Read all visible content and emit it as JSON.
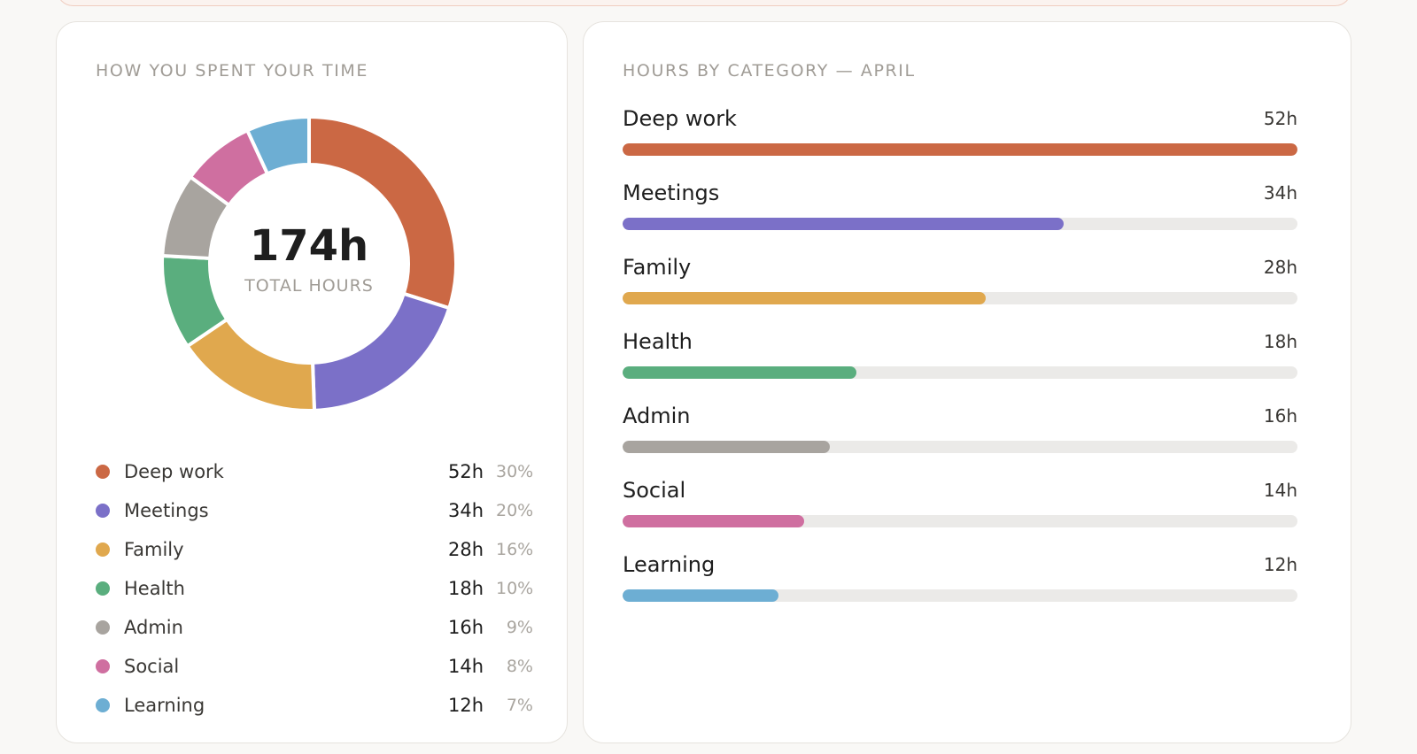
{
  "left_card": {
    "title": "HOW YOU SPENT YOUR TIME",
    "total_value": "174h",
    "total_label": "TOTAL HOURS"
  },
  "right_card": {
    "title": "HOURS BY CATEGORY — APRIL"
  },
  "chart_data": [
    {
      "type": "pie",
      "title": "HOW YOU SPENT YOUR TIME",
      "center_text": "174h",
      "center_subtext": "TOTAL HOURS",
      "total": 174,
      "categories": [
        "Deep work",
        "Meetings",
        "Family",
        "Health",
        "Admin",
        "Social",
        "Learning"
      ],
      "values": [
        52,
        34,
        28,
        18,
        16,
        14,
        12
      ],
      "hours_labels": [
        "52h",
        "34h",
        "28h",
        "18h",
        "16h",
        "14h",
        "12h"
      ],
      "percent_labels": [
        "30%",
        "20%",
        "16%",
        "10%",
        "9%",
        "8%",
        "7%"
      ],
      "colors": [
        "#cb6844",
        "#7b70c8",
        "#e0a84e",
        "#5aae7e",
        "#a8a49f",
        "#cf6fa0",
        "#6daed3"
      ]
    },
    {
      "type": "bar",
      "orientation": "horizontal",
      "title": "HOURS BY CATEGORY — APRIL",
      "categories": [
        "Deep work",
        "Meetings",
        "Family",
        "Health",
        "Admin",
        "Social",
        "Learning"
      ],
      "values": [
        52,
        34,
        28,
        18,
        16,
        14,
        12
      ],
      "value_labels": [
        "52h",
        "34h",
        "28h",
        "18h",
        "16h",
        "14h",
        "12h"
      ],
      "xlim": [
        0,
        52
      ],
      "colors": [
        "#cb6844",
        "#7b70c8",
        "#e0a84e",
        "#5aae7e",
        "#a8a49f",
        "#cf6fa0",
        "#6daed3"
      ]
    }
  ]
}
